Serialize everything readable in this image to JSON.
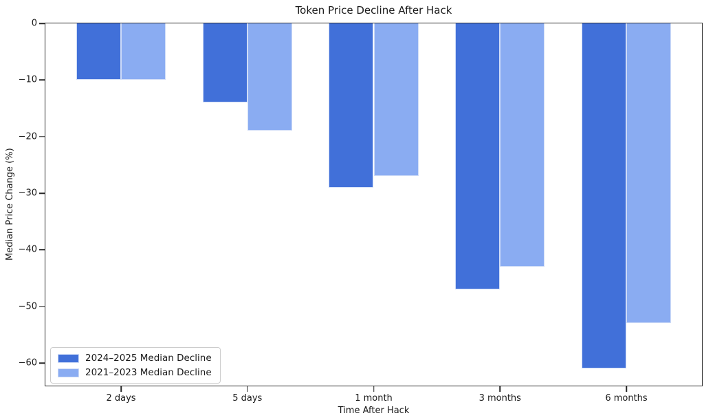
{
  "chart_data": {
    "type": "bar",
    "title": "Token Price Decline After Hack",
    "xlabel": "Time After Hack",
    "ylabel": "Median Price Change (%)",
    "categories": [
      "2 days",
      "5 days",
      "1 month",
      "3 months",
      "6 months"
    ],
    "series": [
      {
        "name": "2024–2025 Median Decline",
        "color": "#4170d9",
        "values": [
          -10,
          -14,
          -29,
          -47,
          -61
        ]
      },
      {
        "name": "2021–2023 Median Decline",
        "color": "#8aacf2",
        "values": [
          -10,
          -19,
          -27,
          -43,
          -53
        ]
      }
    ],
    "yticks": [
      0,
      -10,
      -20,
      -30,
      -40,
      -50,
      -60
    ],
    "ylim": [
      -64,
      0
    ],
    "grid": false,
    "legend_position": "lower left",
    "bar_edge_color": "#cfdcf7",
    "axis_color": "#262626",
    "text_color": "#1a1a1a",
    "background_color": "#ffffff"
  }
}
